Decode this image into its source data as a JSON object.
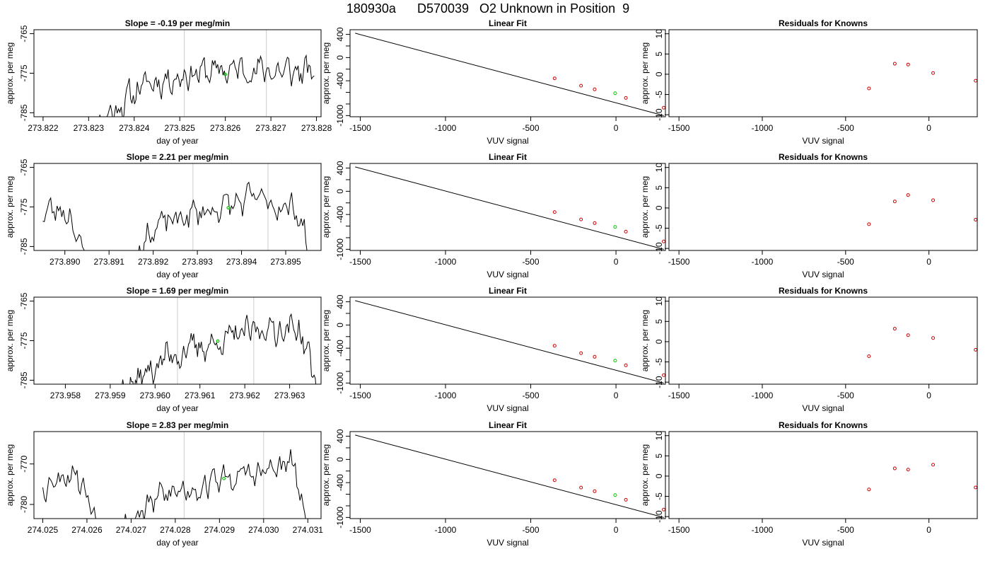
{
  "figure": {
    "title": "180930a      D570039   O2 Unknown in Position  9",
    "colors": {
      "trace": "#000000",
      "guide": "#cccccc",
      "known": "#cc0000",
      "unknown": "#00cc00",
      "frame": "#000000"
    }
  },
  "chart_data": [
    {
      "type": "line",
      "row": 0,
      "col": 0,
      "title": "Slope =  -0.19  per meg/min",
      "xlabel": "day of year",
      "ylabel": "approx. per meg",
      "xlim": [
        273.8218,
        273.8281
      ],
      "ylim": [
        -786,
        -764
      ],
      "xticks": [
        "273.822",
        "273.823",
        "273.824",
        "273.825",
        "273.826",
        "273.827",
        "273.828"
      ],
      "yticks": [
        "-765",
        "-775",
        "-785"
      ],
      "vlines": [
        273.8251,
        273.8269
      ],
      "trace": {
        "start": 273.82295,
        "end": 273.82795,
        "mean": -775.2,
        "seed": 11,
        "rise": [
          [
            0,
            -790
          ],
          [
            0.15,
            -783
          ],
          [
            0.25,
            -778
          ],
          [
            0.45,
            -775
          ],
          [
            0.7,
            -774
          ],
          [
            1,
            -775
          ]
        ]
      },
      "marker": {
        "x": 273.826,
        "y": -775.3
      }
    },
    {
      "type": "scatter",
      "row": 0,
      "col": 1,
      "title": "Linear Fit",
      "xlabel": "VUV signal",
      "ylabel": "approx. per meg",
      "xlim": [
        -1560,
        290
      ],
      "ylim": [
        -1020,
        480
      ],
      "xticks": [
        "-1500",
        "-1000",
        "-500",
        "0"
      ],
      "yticks": [
        "400",
        "0",
        "-400",
        "-1000"
      ],
      "yminor": [
        "200",
        "-200",
        "-600",
        "-800"
      ],
      "line": [
        [
          -1530,
          420
        ],
        [
          280,
          -1000
        ]
      ],
      "points": [
        [
          -360,
          -358
        ],
        [
          -205,
          -485
        ],
        [
          -125,
          -548
        ],
        [
          58,
          -695
        ],
        [
          280,
          -865
        ]
      ],
      "unknown": [
        -5,
        -615
      ]
    },
    {
      "type": "scatter",
      "row": 0,
      "col": 2,
      "title": "Residuals for Knowns",
      "xlabel": "VUV signal",
      "ylabel": "approx. per meg",
      "xlim": [
        -1560,
        290
      ],
      "ylim": [
        -10.5,
        11
      ],
      "xticks": [
        "-1500",
        "-1000",
        "-500",
        "0"
      ],
      "yticks": [
        "10",
        "5",
        "0",
        "-5",
        "-10"
      ],
      "points": [
        [
          -360,
          -3.5
        ],
        [
          -205,
          2.6
        ],
        [
          -125,
          2.4
        ],
        [
          25,
          0.3
        ],
        [
          280,
          -1.6
        ]
      ]
    },
    {
      "type": "line",
      "row": 1,
      "col": 0,
      "title": "Slope =  2.21  per meg/min",
      "xlabel": "day of year",
      "ylabel": "approx. per meg",
      "xlim": [
        273.8893,
        273.8958
      ],
      "ylim": [
        -786,
        -764
      ],
      "xticks": [
        "273.890",
        "273.891",
        "273.892",
        "273.893",
        "273.894",
        "273.895"
      ],
      "yticks": [
        "-765",
        "-775",
        "-785"
      ],
      "vlines": [
        273.8929,
        273.8946
      ],
      "trace": {
        "start": 273.8895,
        "end": 273.8956,
        "mean": -775,
        "seed": 23,
        "rise": [
          [
            0,
            -776
          ],
          [
            0.1,
            -776
          ],
          [
            0.18,
            -795
          ],
          [
            0.3,
            -790
          ],
          [
            0.42,
            -780
          ],
          [
            0.6,
            -776
          ],
          [
            0.8,
            -773
          ],
          [
            0.95,
            -776
          ],
          [
            1,
            -790
          ]
        ]
      },
      "marker": {
        "x": 273.8937,
        "y": -775.2
      }
    },
    {
      "type": "scatter",
      "row": 1,
      "col": 1,
      "title": "Linear Fit",
      "xlabel": "VUV signal",
      "ylabel": "approx. per meg",
      "xlim": [
        -1560,
        290
      ],
      "ylim": [
        -1020,
        480
      ],
      "xticks": [
        "-1500",
        "-1000",
        "-500",
        "0"
      ],
      "yticks": [
        "400",
        "0",
        "-400",
        "-1000"
      ],
      "yminor": [
        "200",
        "-200",
        "-600",
        "-800"
      ],
      "line": [
        [
          -1530,
          420
        ],
        [
          280,
          -1000
        ]
      ],
      "points": [
        [
          -360,
          -358
        ],
        [
          -205,
          -485
        ],
        [
          -125,
          -548
        ],
        [
          58,
          -695
        ],
        [
          280,
          -865
        ]
      ],
      "unknown": [
        -5,
        -615
      ]
    },
    {
      "type": "scatter",
      "row": 1,
      "col": 2,
      "title": "Residuals for Knowns",
      "xlabel": "VUV signal",
      "ylabel": "approx. per meg",
      "xlim": [
        -1560,
        290
      ],
      "ylim": [
        -10.5,
        11
      ],
      "xticks": [
        "-1500",
        "-1000",
        "-500",
        "0"
      ],
      "yticks": [
        "10",
        "5",
        "0",
        "-5",
        "-10"
      ],
      "points": [
        [
          -360,
          -4.0
        ],
        [
          -205,
          1.6
        ],
        [
          -125,
          3.2
        ],
        [
          25,
          1.9
        ],
        [
          280,
          -2.9
        ]
      ]
    },
    {
      "type": "line",
      "row": 2,
      "col": 0,
      "title": "Slope =  1.69  per meg/min",
      "xlabel": "day of year",
      "ylabel": "approx. per meg",
      "xlim": [
        273.9573,
        273.9637
      ],
      "ylim": [
        -786,
        -764
      ],
      "xticks": [
        "273.958",
        "273.959",
        "273.960",
        "273.961",
        "273.962",
        "273.963"
      ],
      "yticks": [
        "-765",
        "-775",
        "-785"
      ],
      "vlines": [
        273.9605,
        273.9622
      ],
      "trace": {
        "start": 273.9588,
        "end": 273.9636,
        "mean": -775,
        "seed": 37,
        "rise": [
          [
            0,
            -792
          ],
          [
            0.15,
            -786
          ],
          [
            0.3,
            -779
          ],
          [
            0.5,
            -776
          ],
          [
            0.75,
            -772
          ],
          [
            0.92,
            -772
          ],
          [
            0.97,
            -780
          ],
          [
            1,
            -788
          ]
        ]
      },
      "marker": {
        "x": 273.9614,
        "y": -775.1
      }
    },
    {
      "type": "scatter",
      "row": 2,
      "col": 1,
      "title": "Linear Fit",
      "xlabel": "VUV signal",
      "ylabel": "approx. per meg",
      "xlim": [
        -1560,
        290
      ],
      "ylim": [
        -1020,
        480
      ],
      "xticks": [
        "-1500",
        "-1000",
        "-500",
        "0"
      ],
      "yticks": [
        "400",
        "0",
        "-400",
        "-1000"
      ],
      "yminor": [
        "200",
        "-200",
        "-600",
        "-800"
      ],
      "line": [
        [
          -1530,
          420
        ],
        [
          280,
          -1000
        ]
      ],
      "points": [
        [
          -360,
          -358
        ],
        [
          -205,
          -485
        ],
        [
          -125,
          -548
        ],
        [
          58,
          -695
        ],
        [
          280,
          -865
        ]
      ],
      "unknown": [
        -5,
        -615
      ]
    },
    {
      "type": "scatter",
      "row": 2,
      "col": 2,
      "title": "Residuals for Knowns",
      "xlabel": "VUV signal",
      "ylabel": "approx. per meg",
      "xlim": [
        -1560,
        290
      ],
      "ylim": [
        -10.5,
        11
      ],
      "xticks": [
        "-1500",
        "-1000",
        "-500",
        "0"
      ],
      "yticks": [
        "10",
        "5",
        "0",
        "-5",
        "-10"
      ],
      "points": [
        [
          -360,
          -3.6
        ],
        [
          -205,
          3.2
        ],
        [
          -125,
          1.6
        ],
        [
          25,
          0.9
        ],
        [
          280,
          -2.0
        ]
      ]
    },
    {
      "type": "line",
      "row": 3,
      "col": 0,
      "title": "Slope =  2.83  per meg/min",
      "xlabel": "day of year",
      "ylabel": "approx. per meg",
      "xlim": [
        274.0248,
        274.0313
      ],
      "ylim": [
        -783.5,
        -762
      ],
      "xticks": [
        "274.025",
        "274.026",
        "274.027",
        "274.028",
        "274.029",
        "274.030",
        "274.031"
      ],
      "yticks": [
        "-770",
        "-780"
      ],
      "vlines": [
        274.0282,
        274.03
      ],
      "trace": {
        "start": 274.025,
        "end": 274.031,
        "mean": -773,
        "seed": 53,
        "rise": [
          [
            0,
            -775
          ],
          [
            0.12,
            -771
          ],
          [
            0.18,
            -780
          ],
          [
            0.25,
            -788
          ],
          [
            0.45,
            -778
          ],
          [
            0.65,
            -774
          ],
          [
            0.85,
            -772
          ],
          [
            0.95,
            -770
          ],
          [
            1,
            -790
          ]
        ]
      },
      "marker": {
        "x": 274.0291,
        "y": -773.6
      }
    },
    {
      "type": "scatter",
      "row": 3,
      "col": 1,
      "title": "Linear Fit",
      "xlabel": "VUV signal",
      "ylabel": "approx. per meg",
      "xlim": [
        -1560,
        290
      ],
      "ylim": [
        -1020,
        480
      ],
      "xticks": [
        "-1500",
        "-1000",
        "-500",
        "0"
      ],
      "yticks": [
        "400",
        "0",
        "-400",
        "-1000"
      ],
      "yminor": [
        "200",
        "-200",
        "-600",
        "-800"
      ],
      "line": [
        [
          -1530,
          420
        ],
        [
          280,
          -1000
        ]
      ],
      "points": [
        [
          -360,
          -358
        ],
        [
          -205,
          -485
        ],
        [
          -125,
          -548
        ],
        [
          58,
          -695
        ],
        [
          280,
          -865
        ]
      ],
      "unknown": [
        -5,
        -615
      ]
    },
    {
      "type": "scatter",
      "row": 3,
      "col": 2,
      "title": "Residuals for Knowns",
      "xlabel": "VUV signal",
      "ylabel": "approx. per meg",
      "xlim": [
        -1560,
        290
      ],
      "ylim": [
        -10.5,
        11
      ],
      "xticks": [
        "-1500",
        "-1000",
        "-500",
        "0"
      ],
      "yticks": [
        "10",
        "5",
        "0",
        "-5",
        "-10"
      ],
      "points": [
        [
          -360,
          -3.3
        ],
        [
          -205,
          1.9
        ],
        [
          -125,
          1.6
        ],
        [
          25,
          2.8
        ],
        [
          280,
          -2.8
        ]
      ]
    }
  ]
}
